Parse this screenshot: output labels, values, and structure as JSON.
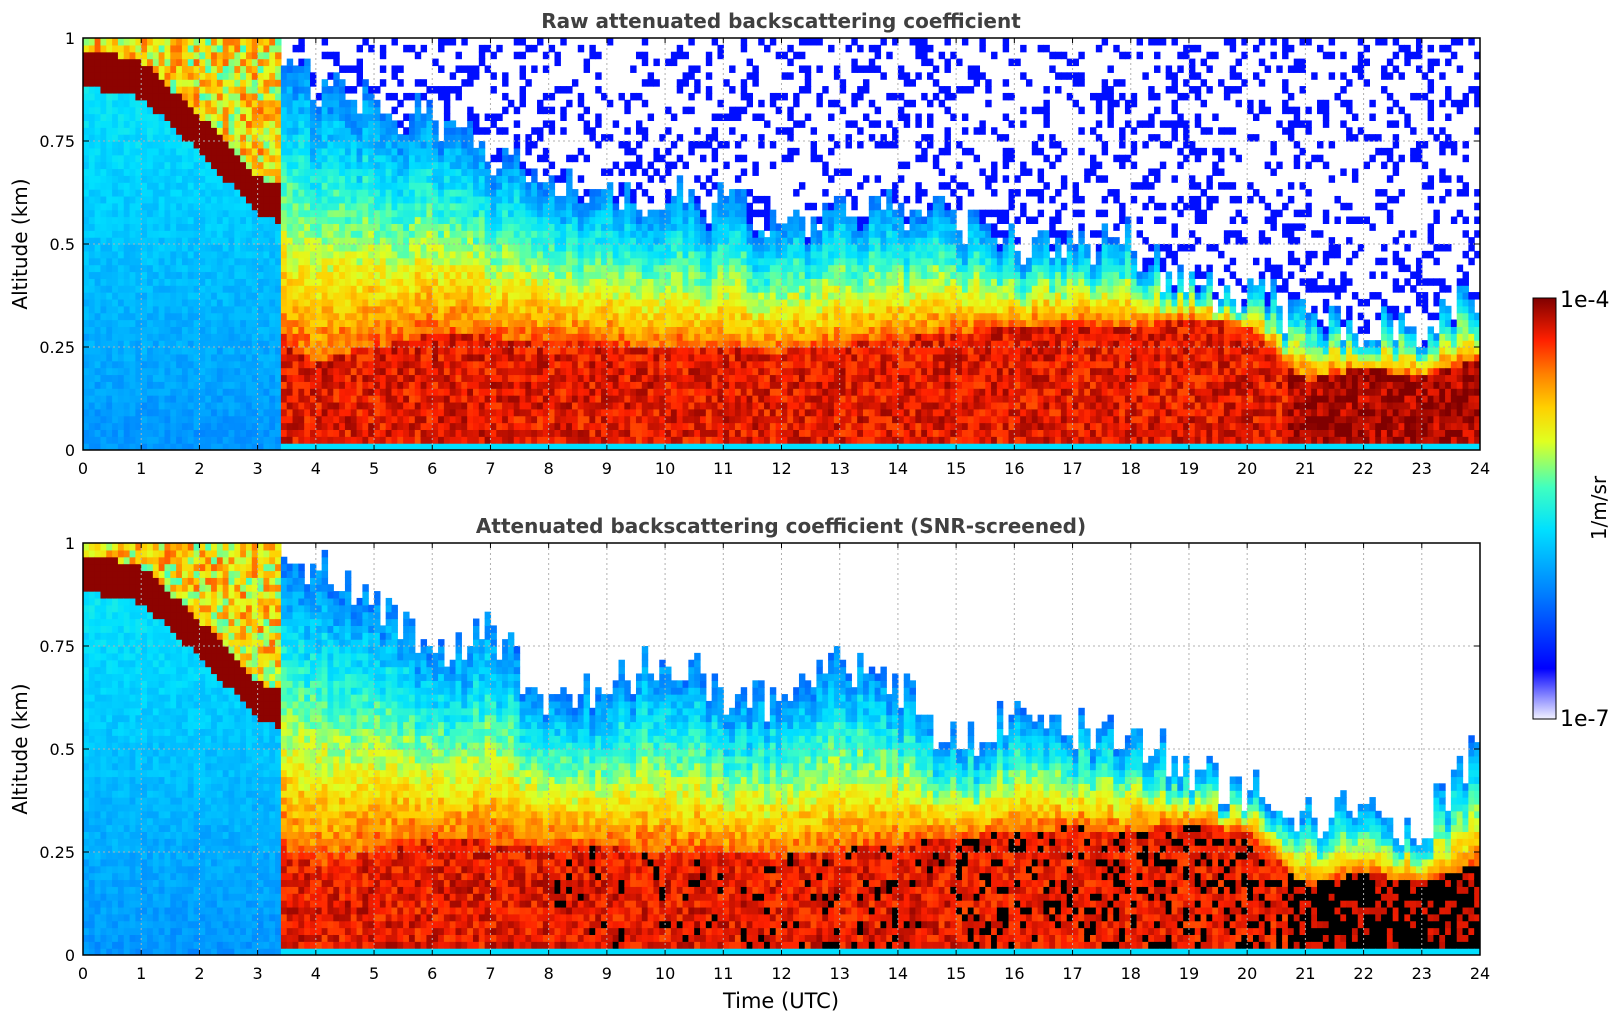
{
  "figure": {
    "colorbar": {
      "label": "1/m/sr",
      "max_label": "1e-4",
      "min_label": "1e-7",
      "scale": "log",
      "colormap": "jet"
    }
  },
  "chart_data": [
    {
      "type": "heatmap",
      "title": "Raw attenuated backscattering coefficient",
      "xlabel": "",
      "ylabel": "Altitude (km)",
      "xlim": [
        0,
        24
      ],
      "ylim": [
        0,
        1
      ],
      "x_ticks": [
        "0",
        "1",
        "2",
        "3",
        "4",
        "5",
        "6",
        "7",
        "8",
        "9",
        "10",
        "11",
        "12",
        "13",
        "14",
        "15",
        "16",
        "17",
        "18",
        "19",
        "20",
        "21",
        "22",
        "23",
        "24"
      ],
      "y_ticks": [
        "0",
        "0.25",
        "0.5",
        "0.75",
        "1"
      ],
      "grid": true,
      "colorbar_range": [
        "1e-7",
        "1e-4"
      ],
      "strong_layer_top_km": [
        [
          0,
          0.95
        ],
        [
          1,
          0.92
        ],
        [
          2,
          0.78
        ],
        [
          3,
          0.62
        ],
        [
          3.5,
          0.25
        ],
        [
          4,
          0.22
        ],
        [
          6,
          0.28
        ],
        [
          8,
          0.27
        ],
        [
          10,
          0.25
        ],
        [
          12,
          0.24
        ],
        [
          14,
          0.27
        ],
        [
          16,
          0.3
        ],
        [
          17,
          0.31
        ],
        [
          18,
          0.3
        ],
        [
          19,
          0.32
        ],
        [
          20,
          0.3
        ],
        [
          21,
          0.17
        ],
        [
          22,
          0.2
        ],
        [
          23,
          0.18
        ],
        [
          24,
          0.22
        ]
      ],
      "aerosol_top_km": [
        [
          0,
          1.0
        ],
        [
          1,
          1.0
        ],
        [
          2,
          1.0
        ],
        [
          3,
          1.0
        ],
        [
          4,
          0.9
        ],
        [
          6,
          0.8
        ],
        [
          8,
          0.65
        ],
        [
          10,
          0.62
        ],
        [
          12,
          0.55
        ],
        [
          14,
          0.6
        ],
        [
          16,
          0.5
        ],
        [
          18,
          0.5
        ],
        [
          19,
          0.4
        ],
        [
          20,
          0.38
        ],
        [
          21,
          0.32
        ],
        [
          22,
          0.3
        ],
        [
          23,
          0.3
        ],
        [
          24,
          0.4
        ]
      ]
    },
    {
      "type": "heatmap",
      "title": "Attenuated backscattering coefficient (SNR-screened)",
      "xlabel": "Time (UTC)",
      "ylabel": "Altitude (km)",
      "xlim": [
        0,
        24
      ],
      "ylim": [
        0,
        1
      ],
      "x_ticks": [
        "0",
        "1",
        "2",
        "3",
        "4",
        "5",
        "6",
        "7",
        "8",
        "9",
        "10",
        "11",
        "12",
        "13",
        "14",
        "15",
        "16",
        "17",
        "18",
        "19",
        "20",
        "21",
        "22",
        "23",
        "24"
      ],
      "y_ticks": [
        "0",
        "0.25",
        "0.5",
        "0.75",
        "1"
      ],
      "grid": true,
      "colorbar_range": [
        "1e-7",
        "1e-4"
      ],
      "screened_top_km": [
        [
          0,
          1.0
        ],
        [
          2,
          1.0
        ],
        [
          3,
          0.9
        ],
        [
          4,
          0.95
        ],
        [
          5,
          0.85
        ],
        [
          6,
          0.75
        ],
        [
          7,
          0.8
        ],
        [
          8,
          0.6
        ],
        [
          9,
          0.65
        ],
        [
          10,
          0.72
        ],
        [
          11,
          0.65
        ],
        [
          12,
          0.6
        ],
        [
          13,
          0.7
        ],
        [
          14,
          0.65
        ],
        [
          15,
          0.5
        ],
        [
          16,
          0.6
        ],
        [
          17,
          0.55
        ],
        [
          18,
          0.55
        ],
        [
          19,
          0.45
        ],
        [
          20,
          0.4
        ],
        [
          21,
          0.35
        ],
        [
          22,
          0.33
        ],
        [
          23,
          0.32
        ],
        [
          24,
          0.5
        ]
      ]
    }
  ]
}
